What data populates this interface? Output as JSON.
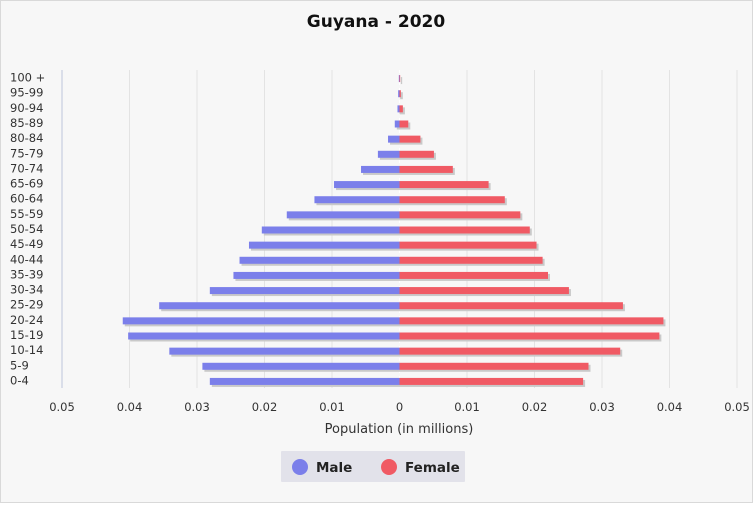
{
  "chart_data": {
    "type": "bar",
    "orientation": "horizontal-pyramid",
    "title": "Guyana - 2020",
    "xlabel": "Population (in millions)",
    "ylabel": "",
    "categories": [
      "100 +",
      "95-99",
      "90-94",
      "85-89",
      "80-84",
      "75-79",
      "70-74",
      "65-69",
      "60-64",
      "55-59",
      "50-54",
      "45-49",
      "40-44",
      "35-39",
      "30-34",
      "25-29",
      "20-24",
      "15-19",
      "10-14",
      "5-9",
      "0-4"
    ],
    "x_ticks": [
      "0.05",
      "0.04",
      "0.03",
      "0.02",
      "0.01",
      "0",
      "0.01",
      "0.02",
      "0.03",
      "0.04",
      "0.05"
    ],
    "xlim": [
      -0.05,
      0.05
    ],
    "legend_position": "bottom-center",
    "grid": true,
    "series": [
      {
        "name": "Male",
        "color": "#7b7fea",
        "values": [
          0.0001,
          0.0002,
          0.0003,
          0.0007,
          0.0017,
          0.0032,
          0.0057,
          0.0097,
          0.0126,
          0.0167,
          0.0204,
          0.0223,
          0.0237,
          0.0246,
          0.0281,
          0.0356,
          0.041,
          0.0402,
          0.0341,
          0.0292,
          0.0281
        ]
      },
      {
        "name": "Female",
        "color": "#f05a64",
        "values": [
          0.0001,
          0.0002,
          0.0005,
          0.0013,
          0.0031,
          0.0051,
          0.0079,
          0.0132,
          0.0156,
          0.0179,
          0.0193,
          0.0203,
          0.0212,
          0.022,
          0.0251,
          0.0331,
          0.0391,
          0.0385,
          0.0327,
          0.028,
          0.0272
        ]
      }
    ]
  }
}
